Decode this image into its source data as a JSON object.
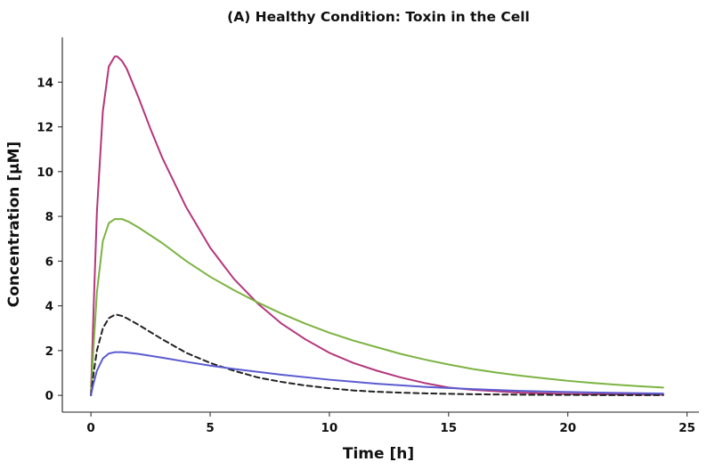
{
  "chart_data": {
    "type": "line",
    "title": "(A) Healthy Condition: Toxin in the Cell",
    "xlabel": "Time [h]",
    "ylabel": "Concentration [μM]",
    "xlim": [
      -1.2,
      25.5
    ],
    "ylim": [
      -0.75,
      16.0
    ],
    "xticks": [
      0,
      5,
      10,
      15,
      20,
      25
    ],
    "yticks": [
      0,
      2,
      4,
      6,
      8,
      10,
      12,
      14
    ],
    "grid": false,
    "legend": "none",
    "series": [
      {
        "color": "#b5367b",
        "dash": false,
        "x": [
          0,
          0.1,
          0.25,
          0.5,
          0.75,
          1.0,
          1.1,
          1.3,
          1.5,
          2.0,
          2.5,
          3,
          4,
          5,
          6,
          7,
          8,
          9,
          10,
          11,
          12,
          13,
          14,
          15,
          16,
          18,
          20,
          22,
          24
        ],
        "y": [
          0,
          3.5,
          8.2,
          12.7,
          14.7,
          15.15,
          15.15,
          14.95,
          14.6,
          13.3,
          11.9,
          10.6,
          8.4,
          6.6,
          5.2,
          4.1,
          3.2,
          2.5,
          1.9,
          1.45,
          1.1,
          0.8,
          0.55,
          0.35,
          0.25,
          0.12,
          0.06,
          0.04,
          0.03
        ]
      },
      {
        "color": "#7cb342",
        "dash": false,
        "x": [
          0,
          0.1,
          0.25,
          0.5,
          0.75,
          1.0,
          1.3,
          1.6,
          2,
          3,
          4,
          5,
          6,
          7,
          8,
          9,
          10,
          11,
          12,
          13,
          14,
          15,
          16,
          17,
          18,
          19,
          20,
          21,
          22,
          23,
          24
        ],
        "y": [
          0,
          2.0,
          4.6,
          6.9,
          7.7,
          7.88,
          7.88,
          7.75,
          7.5,
          6.8,
          6.0,
          5.3,
          4.7,
          4.15,
          3.65,
          3.2,
          2.8,
          2.45,
          2.15,
          1.85,
          1.6,
          1.38,
          1.18,
          1.02,
          0.88,
          0.76,
          0.65,
          0.56,
          0.48,
          0.41,
          0.35
        ]
      },
      {
        "color": "#222222",
        "dash": true,
        "x": [
          0,
          0.1,
          0.25,
          0.5,
          0.75,
          1.0,
          1.1,
          1.3,
          1.5,
          2,
          3,
          4,
          5,
          6,
          7,
          8,
          9,
          10,
          11,
          12,
          13,
          14,
          15,
          16,
          18,
          20,
          22,
          24
        ],
        "y": [
          0,
          0.9,
          2.0,
          3.0,
          3.45,
          3.6,
          3.6,
          3.55,
          3.45,
          3.15,
          2.5,
          1.9,
          1.45,
          1.1,
          0.8,
          0.6,
          0.44,
          0.32,
          0.22,
          0.16,
          0.12,
          0.09,
          0.07,
          0.05,
          0.03,
          0.02,
          0.01,
          0.01
        ]
      },
      {
        "color": "#5b5bd0",
        "dash": false,
        "x": [
          0,
          0.1,
          0.25,
          0.5,
          0.75,
          1.0,
          1.3,
          1.6,
          2,
          3,
          4,
          5,
          6,
          8,
          10,
          12,
          14,
          16,
          18,
          20,
          22,
          24
        ],
        "y": [
          0,
          0.5,
          1.1,
          1.65,
          1.87,
          1.93,
          1.93,
          1.9,
          1.85,
          1.68,
          1.5,
          1.33,
          1.18,
          0.92,
          0.7,
          0.52,
          0.38,
          0.28,
          0.2,
          0.15,
          0.11,
          0.08
        ]
      }
    ]
  }
}
